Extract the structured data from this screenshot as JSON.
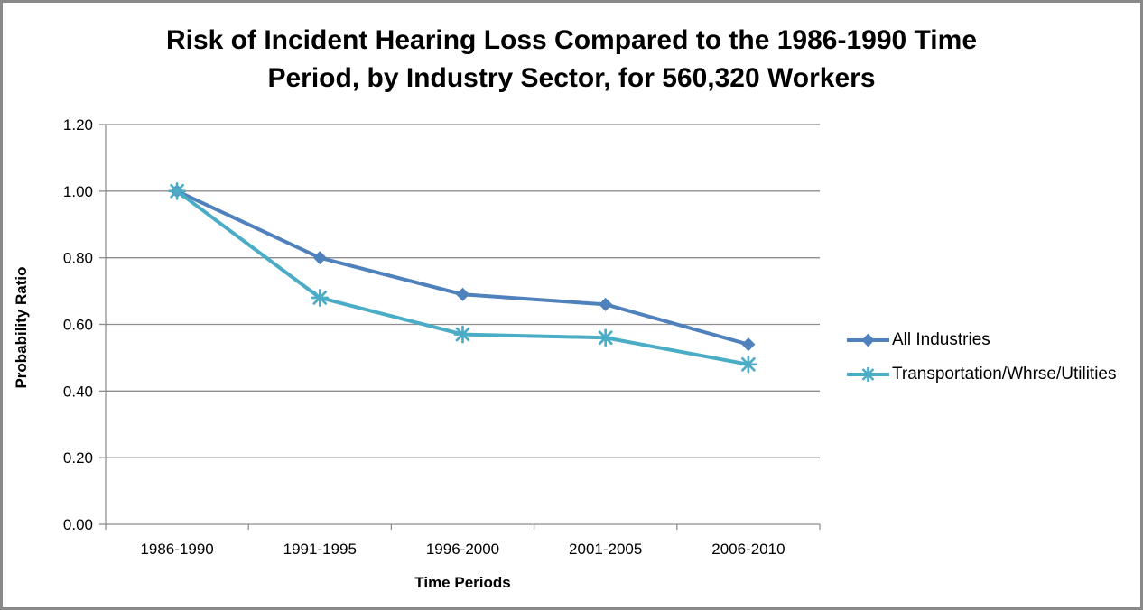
{
  "window": {
    "background": "#ffffff",
    "border_color": "#898989"
  },
  "chart_data": {
    "type": "line",
    "title": "Risk of Incident Hearing Loss Compared to the 1986-1990 Time Period, by Industry Sector, for 560,320 Workers",
    "title_lines": [
      "Risk of Incident Hearing Loss Compared to the 1986-1990 Time",
      "Period, by Industry Sector, for 560,320 Workers"
    ],
    "xlabel": "Time Periods",
    "ylabel": "Probability Ratio",
    "categories": [
      "1986-1990",
      "1991-1995",
      "1996-2000",
      "2001-2005",
      "2006-2010"
    ],
    "series": [
      {
        "name": "All Industries",
        "marker": "diamond",
        "color": "#4F81BD",
        "values": [
          1.0,
          0.8,
          0.69,
          0.66,
          0.54
        ]
      },
      {
        "name": "Transportation/Whrse/Utilities",
        "marker": "asterisk",
        "color": "#4BACC6",
        "values": [
          1.0,
          0.68,
          0.57,
          0.56,
          0.48
        ]
      }
    ],
    "ylim": [
      0.0,
      1.2
    ],
    "ytick_step": 0.2,
    "ytick_labels": [
      "0.00",
      "0.20",
      "0.40",
      "0.60",
      "0.80",
      "1.00",
      "1.20"
    ],
    "grid": true,
    "gridline_color": "#8e8e8e",
    "axis_color": "#8e8e8e",
    "text_color": "#000000",
    "legend_position": "right"
  }
}
